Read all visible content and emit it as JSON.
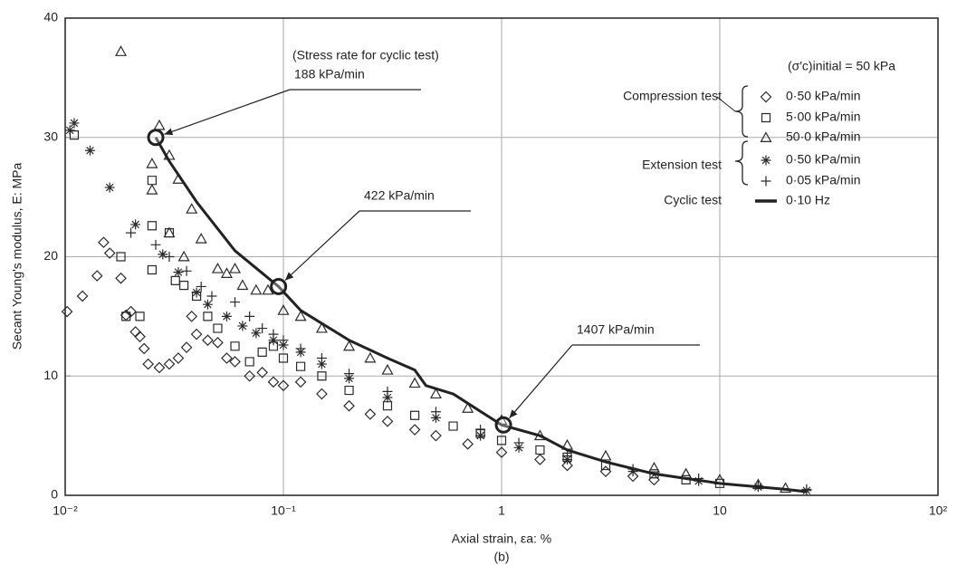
{
  "chart_data": {
    "type": "scatter",
    "x_label": "Axial strain, εa: %",
    "y_label": "Secant Young's modulus, E: MPa",
    "caption": "(b)",
    "log_x": true,
    "grid": true,
    "xlim": [
      0.01,
      100
    ],
    "xticks": [
      {
        "value": 0.01,
        "label": "10⁻²"
      },
      {
        "value": 0.1,
        "label": "10⁻¹"
      },
      1,
      10,
      {
        "value": 100,
        "label": "10²"
      }
    ],
    "ylim": [
      0,
      40
    ],
    "yticks": [
      0,
      10,
      20,
      30,
      40
    ],
    "legend_position": "upper right",
    "legend_title": "(σ′c)initial = 50 kPa",
    "legend_groups": [
      "Compression test",
      "Extension test",
      "Cyclic test"
    ],
    "annotation_title": "(Stress rate for cyclic test)",
    "annotations": [
      {
        "text": "188 kPa/min",
        "x": 0.026,
        "y": 30
      },
      {
        "text": "422 kPa/min",
        "x": 0.095,
        "y": 17.5
      },
      {
        "text": "1407 kPa/min",
        "x": 1.02,
        "y": 5.9
      }
    ],
    "series": [
      {
        "name": "0·50 kPa/min",
        "color": "#2a2a2a",
        "marker": "diamond",
        "x": [
          0.0102,
          0.012,
          0.014,
          0.015,
          0.016,
          0.018,
          0.019,
          0.02,
          0.021,
          0.022,
          0.023,
          0.024,
          0.027,
          0.03,
          0.033,
          0.036,
          0.038,
          0.04,
          0.045,
          0.05,
          0.055,
          0.06,
          0.07,
          0.08,
          0.09,
          0.1,
          0.12,
          0.15,
          0.2,
          0.25,
          0.3,
          0.4,
          0.5,
          0.7,
          1,
          1.5,
          2,
          3,
          4,
          5
        ],
        "values": [
          15.4,
          16.7,
          18.4,
          21.2,
          20.3,
          18.2,
          15.1,
          15.4,
          13.7,
          13.3,
          12.3,
          11,
          10.7,
          11,
          11.5,
          12.4,
          15,
          13.5,
          13,
          12.8,
          11.5,
          11.2,
          10,
          10.3,
          9.5,
          9.2,
          9.5,
          8.5,
          7.5,
          6.8,
          6.2,
          5.5,
          5,
          4.3,
          3.6,
          3,
          2.5,
          2,
          1.6,
          1.3
        ]
      },
      {
        "name": "5·00 kPa/min",
        "color": "#2a2a2a",
        "marker": "square",
        "x": [
          0.011,
          0.018,
          0.019,
          0.022,
          0.025,
          0.025,
          0.025,
          0.03,
          0.032,
          0.035,
          0.04,
          0.045,
          0.05,
          0.06,
          0.07,
          0.08,
          0.09,
          0.1,
          0.12,
          0.15,
          0.2,
          0.3,
          0.4,
          0.6,
          0.8,
          1,
          1.5,
          2,
          3,
          5,
          7,
          10
        ],
        "values": [
          30.2,
          20,
          15,
          15,
          26.4,
          22.6,
          18.9,
          22,
          18,
          17.6,
          16.7,
          15,
          14,
          12.5,
          11.2,
          12,
          12.5,
          11.5,
          10.8,
          10,
          8.8,
          7.5,
          6.7,
          5.8,
          5.2,
          4.6,
          3.8,
          3.2,
          2.5,
          1.8,
          1.3,
          1
        ]
      },
      {
        "name": "50·0 kPa/min",
        "color": "#2a2a2a",
        "marker": "triangle",
        "x": [
          0.018,
          0.025,
          0.025,
          0.027,
          0.03,
          0.033,
          0.038,
          0.03,
          0.035,
          0.042,
          0.05,
          0.055,
          0.06,
          0.065,
          0.075,
          0.085,
          0.1,
          0.12,
          0.15,
          0.2,
          0.25,
          0.3,
          0.4,
          0.5,
          0.7,
          1,
          1.5,
          2,
          3,
          5,
          7,
          10,
          15,
          20
        ],
        "values": [
          37.2,
          27.8,
          25.6,
          31,
          28.5,
          26.5,
          24,
          22,
          20,
          21.5,
          19,
          18.6,
          19,
          17.6,
          17.2,
          17.2,
          15.5,
          15,
          14,
          12.5,
          11.5,
          10.5,
          9.4,
          8.5,
          7.3,
          6.3,
          5,
          4.2,
          3.3,
          2.3,
          1.8,
          1.3,
          0.9,
          0.6
        ]
      },
      {
        "name": "0·50 kPa/min",
        "color": "#2a2a2a",
        "marker": "asterisk",
        "x": [
          0.0105,
          0.011,
          0.013,
          0.016,
          0.021,
          0.028,
          0.033,
          0.04,
          0.045,
          0.055,
          0.065,
          0.075,
          0.09,
          0.1,
          0.12,
          0.15,
          0.2,
          0.3,
          0.5,
          0.8,
          1.2,
          2,
          4,
          8,
          15,
          25
        ],
        "values": [
          30.6,
          31.2,
          28.9,
          25.8,
          22.7,
          20.2,
          18.7,
          17,
          16,
          15,
          14.2,
          13.6,
          13,
          12.6,
          12,
          11,
          9.8,
          8.2,
          6.5,
          5,
          4,
          3,
          2,
          1.2,
          0.7,
          0.4
        ]
      },
      {
        "name": "0·05 kPa/min",
        "color": "#2a2a2a",
        "marker": "plus",
        "x": [
          0.02,
          0.026,
          0.03,
          0.036,
          0.042,
          0.047,
          0.06,
          0.07,
          0.08,
          0.09,
          0.1,
          0.12,
          0.15,
          0.2,
          0.3,
          0.5,
          0.8,
          1.2,
          2,
          4,
          8,
          15,
          25
        ],
        "values": [
          22,
          21,
          20,
          18.8,
          17.5,
          16.7,
          16.2,
          15,
          14,
          13.5,
          13,
          12.3,
          11.5,
          10.2,
          8.7,
          7,
          5.5,
          4.4,
          3.3,
          2.2,
          1.4,
          0.8,
          0.5
        ]
      },
      {
        "name": "0·10 Hz",
        "color": "#222222",
        "marker": "line",
        "x": [
          0.026,
          0.03,
          0.04,
          0.06,
          0.095,
          0.12,
          0.2,
          0.3,
          0.4,
          0.45,
          0.6,
          1,
          1.5,
          2,
          3,
          5,
          10,
          20,
          25
        ],
        "values": [
          30,
          28,
          24.6,
          20.5,
          17.5,
          15.5,
          13,
          11.5,
          10.5,
          9.2,
          8.5,
          5.9,
          5,
          3.8,
          2.8,
          1.8,
          1,
          0.5,
          0.3
        ]
      }
    ]
  }
}
